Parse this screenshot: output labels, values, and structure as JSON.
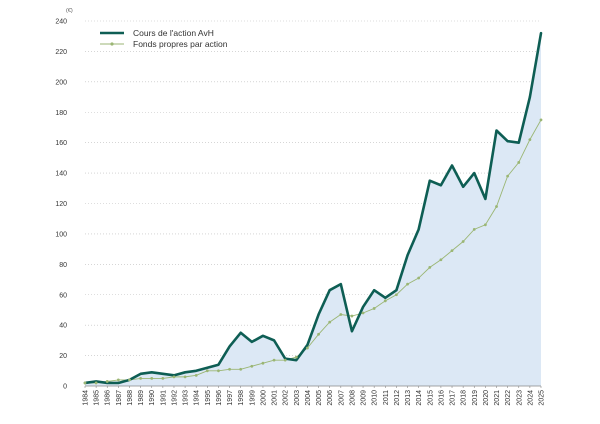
{
  "chart_data": {
    "type": "line",
    "title": "",
    "unit_label": "(€)",
    "xlabel": "",
    "ylabel": "",
    "ylim": [
      0,
      240
    ],
    "yticks": [
      0,
      20,
      40,
      60,
      80,
      100,
      120,
      140,
      160,
      180,
      200,
      220,
      240
    ],
    "grid": "horizontal-dotted",
    "legend_position": "top-left",
    "categories": [
      "1984",
      "1985",
      "1986",
      "1987",
      "1988",
      "1989",
      "1990",
      "1991",
      "1992",
      "1993",
      "1994",
      "1995",
      "1996",
      "1997",
      "1998",
      "1999",
      "2000",
      "2001",
      "2002",
      "2003",
      "2004",
      "2005",
      "2006",
      "2007",
      "2008",
      "2009",
      "2010",
      "2011",
      "2012",
      "2013",
      "2014",
      "2015",
      "2016",
      "2017",
      "2018",
      "2019",
      "2020",
      "2021",
      "2022",
      "2023",
      "2024",
      "2025"
    ],
    "series": [
      {
        "name": "Cours de l'action AvH",
        "style": "thick-line-with-area",
        "color": "#0e5e54",
        "area_color": "#dce8f5",
        "values": [
          2,
          3,
          2,
          2,
          4,
          8,
          9,
          8,
          7,
          9,
          10,
          12,
          14,
          26,
          35,
          29,
          33,
          30,
          18,
          17,
          27,
          47,
          63,
          67,
          36,
          52,
          63,
          58,
          63,
          86,
          103,
          135,
          132,
          145,
          131,
          140,
          123,
          168,
          161,
          160,
          190,
          232
        ]
      },
      {
        "name": "Fonds propres par action",
        "style": "thin-line-with-markers",
        "color": "#9bb674",
        "values": [
          2,
          2,
          3,
          4,
          4,
          5,
          5,
          5,
          6,
          6,
          7,
          10,
          10,
          11,
          11,
          13,
          15,
          17,
          17,
          19,
          25,
          34,
          42,
          47,
          46,
          48,
          51,
          56,
          60,
          67,
          71,
          78,
          83,
          89,
          95,
          103,
          106,
          118,
          138,
          147,
          162,
          175
        ]
      }
    ]
  }
}
